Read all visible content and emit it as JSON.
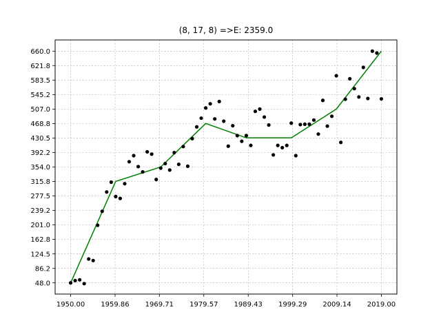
{
  "chart_data": {
    "type": "scatter",
    "title": "(8, 17, 8) =>E: 2359.0",
    "xlabel": "",
    "ylabel": "",
    "xlim": [
      1946.55,
      2022.45
    ],
    "ylim": [
      18.4,
      689.6
    ],
    "grid": true,
    "x_ticks": [
      "1950.00",
      "1959.86",
      "1969.71",
      "1979.57",
      "1989.43",
      "1999.29",
      "2009.14",
      "2019.00"
    ],
    "x_tick_values": [
      1950.0,
      1959.86,
      1969.71,
      1979.57,
      1989.43,
      1999.29,
      2009.14,
      2019.0
    ],
    "y_ticks": [
      "48.0",
      "86.2",
      "124.5",
      "162.8",
      "201.0",
      "239.2",
      "277.5",
      "315.8",
      "354.0",
      "392.2",
      "430.5",
      "468.8",
      "507.0",
      "545.2",
      "583.5",
      "621.8",
      "660.0"
    ],
    "y_tick_values": [
      48.0,
      86.2,
      124.5,
      162.8,
      201.0,
      239.2,
      277.5,
      315.8,
      354.0,
      392.2,
      430.5,
      468.8,
      507.0,
      545.2,
      583.5,
      621.8,
      660.0
    ],
    "series": [
      {
        "type": "scatter",
        "color": "#000000",
        "x": [
          1950,
          1951,
          1952,
          1953,
          1954,
          1955,
          1956,
          1957,
          1958,
          1959,
          1960,
          1961,
          1962,
          1963,
          1964,
          1965,
          1966,
          1967,
          1968,
          1969,
          1970,
          1971,
          1972,
          1973,
          1974,
          1975,
          1976,
          1977,
          1978,
          1979,
          1980,
          1981,
          1982,
          1983,
          1984,
          1985,
          1986,
          1987,
          1988,
          1989,
          1990,
          1991,
          1992,
          1993,
          1994,
          1995,
          1996,
          1997,
          1998,
          1999,
          2000,
          2001,
          2002,
          2003,
          2004,
          2005,
          2006,
          2007,
          2008,
          2009,
          2010,
          2011,
          2012,
          2013,
          2014,
          2015,
          2016,
          2017,
          2018,
          2019
        ],
        "y": [
          48,
          54,
          56,
          46,
          111,
          107,
          200,
          237,
          288,
          314,
          276,
          271,
          310,
          368,
          384,
          355,
          341,
          394,
          388,
          321,
          351,
          363,
          346,
          392,
          361,
          408,
          356,
          429,
          460,
          483,
          510,
          521,
          481,
          527,
          475,
          409,
          463,
          437,
          422,
          437,
          411,
          501,
          507,
          486,
          465,
          386,
          411,
          405,
          411,
          470,
          384,
          466,
          467,
          467,
          478,
          441,
          530,
          462,
          488,
          595,
          419,
          533,
          587,
          561,
          539,
          617,
          535,
          660,
          655,
          534
        ]
      },
      {
        "type": "line",
        "color": "#008000",
        "x": [
          1950,
          1960,
          1970,
          1980,
          1989,
          1999,
          2009,
          2019
        ],
        "y": [
          48,
          316,
          354,
          469,
          431,
          431,
          507,
          660
        ]
      }
    ]
  }
}
